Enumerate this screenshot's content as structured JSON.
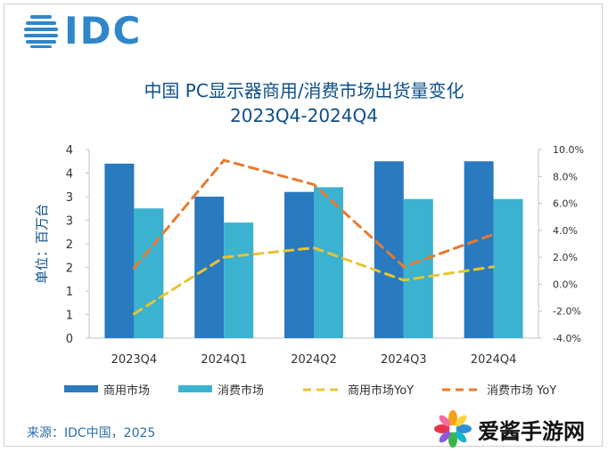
{
  "brand": {
    "logo_text": "IDC",
    "logo_color": "#2f86c9"
  },
  "watermark": {
    "text": "爱酱手游网"
  },
  "source": "来源：IDC中国，2025",
  "chart_data": {
    "type": "bar",
    "title": "中国 PC显示器商用/消费市场出货量变化",
    "subtitle": "2023Q4-2024Q4",
    "ylabel": "单位：百万台",
    "categories": [
      "2023Q4",
      "2024Q1",
      "2024Q2",
      "2024Q3",
      "2024Q4"
    ],
    "y_ticks": [
      "0",
      "1",
      "1",
      "2",
      "2",
      "3",
      "3",
      "4",
      "4"
    ],
    "y2_ticks": [
      "-4.0%",
      "-2.0%",
      "0.0%",
      "2.0%",
      "4.0%",
      "6.0%",
      "8.0%",
      "10.0%"
    ],
    "ylim": [
      0,
      4.0
    ],
    "y2lim": [
      -4,
      10
    ],
    "series": [
      {
        "name": "商用市场",
        "kind": "bar",
        "axis": "left",
        "color": "#2a7abf",
        "values": [
          3.7,
          3.0,
          3.1,
          3.75,
          3.75
        ]
      },
      {
        "name": "消费市场",
        "kind": "bar",
        "axis": "left",
        "color": "#3bb2cf",
        "values": [
          2.75,
          2.45,
          3.2,
          2.95,
          2.95
        ]
      },
      {
        "name": "商用市场YoY",
        "kind": "line",
        "axis": "right",
        "color": "#e8c431",
        "values": [
          -2.2,
          2.0,
          2.7,
          0.3,
          1.3
        ]
      },
      {
        "name": "消费市场 YoY",
        "kind": "line",
        "axis": "right",
        "color": "#e87a2e",
        "values": [
          1.2,
          9.2,
          7.4,
          1.3,
          3.7
        ]
      }
    ],
    "legend_position": "bottom",
    "grid": false
  }
}
